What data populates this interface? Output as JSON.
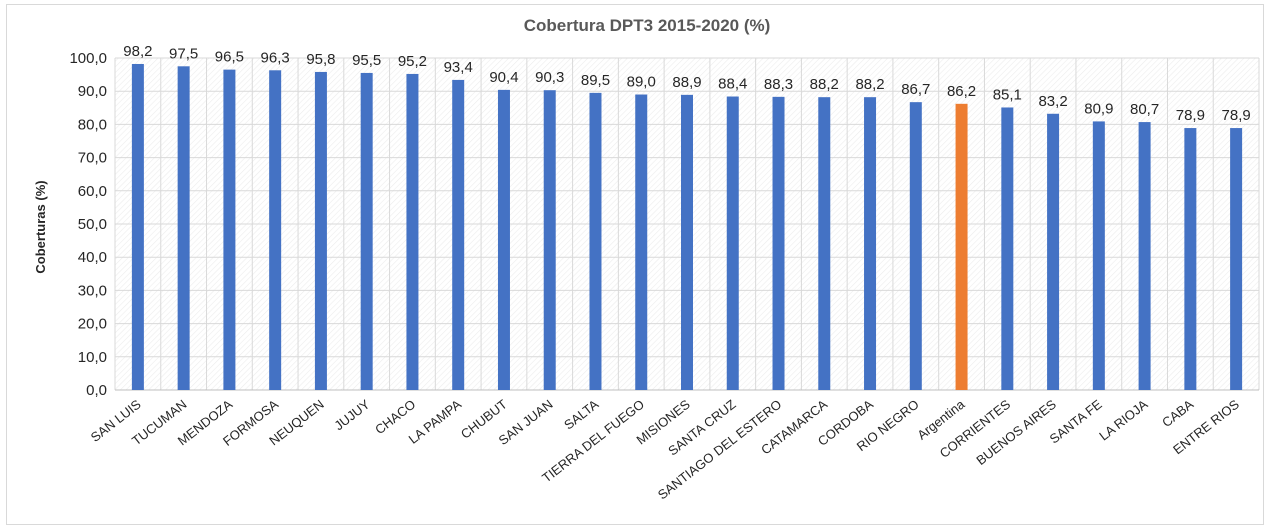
{
  "chart_data": {
    "type": "bar",
    "title": "Cobertura DPT3 2015-2020 (%)",
    "xlabel": "",
    "ylabel": "Coberturas (%)",
    "ylim": [
      0,
      100
    ],
    "yticks": [
      "0,0",
      "10,0",
      "20,0",
      "30,0",
      "40,0",
      "50,0",
      "60,0",
      "70,0",
      "80,0",
      "90,0",
      "100,0"
    ],
    "grid": true,
    "categories": [
      "SAN LUIS",
      "TUCUMAN",
      "MENDOZA",
      "FORMOSA",
      "NEUQUEN",
      "JUJUY",
      "CHACO",
      "LA PAMPA",
      "CHUBUT",
      "SAN JUAN",
      "SALTA",
      "TIERRA DEL FUEGO",
      "MISIONES",
      "SANTA CRUZ",
      "SANTIAGO DEL ESTERO",
      "CATAMARCA",
      "CORDOBA",
      "RIO NEGRO",
      "Argentina",
      "CORRIENTES",
      "BUENOS AIRES",
      "SANTA FE",
      "LA RIOJA",
      "CABA",
      "ENTRE RIOS"
    ],
    "values": [
      98.2,
      97.5,
      96.5,
      96.3,
      95.8,
      95.5,
      95.2,
      93.4,
      90.4,
      90.3,
      89.5,
      89.0,
      88.9,
      88.4,
      88.3,
      88.2,
      88.2,
      86.7,
      86.2,
      85.1,
      83.2,
      80.9,
      80.7,
      78.9,
      78.9
    ],
    "value_labels": [
      "98,2",
      "97,5",
      "96,5",
      "96,3",
      "95,8",
      "95,5",
      "95,2",
      "93,4",
      "90,4",
      "90,3",
      "89,5",
      "89,0",
      "88,9",
      "88,4",
      "88,3",
      "88,2",
      "88,2",
      "86,7",
      "86,2",
      "85,1",
      "83,2",
      "80,9",
      "80,7",
      "78,9",
      "78,9"
    ],
    "colors": {
      "bar": "#4472c4",
      "highlight": "#ed7d31",
      "highlight_category": "Argentina"
    }
  }
}
